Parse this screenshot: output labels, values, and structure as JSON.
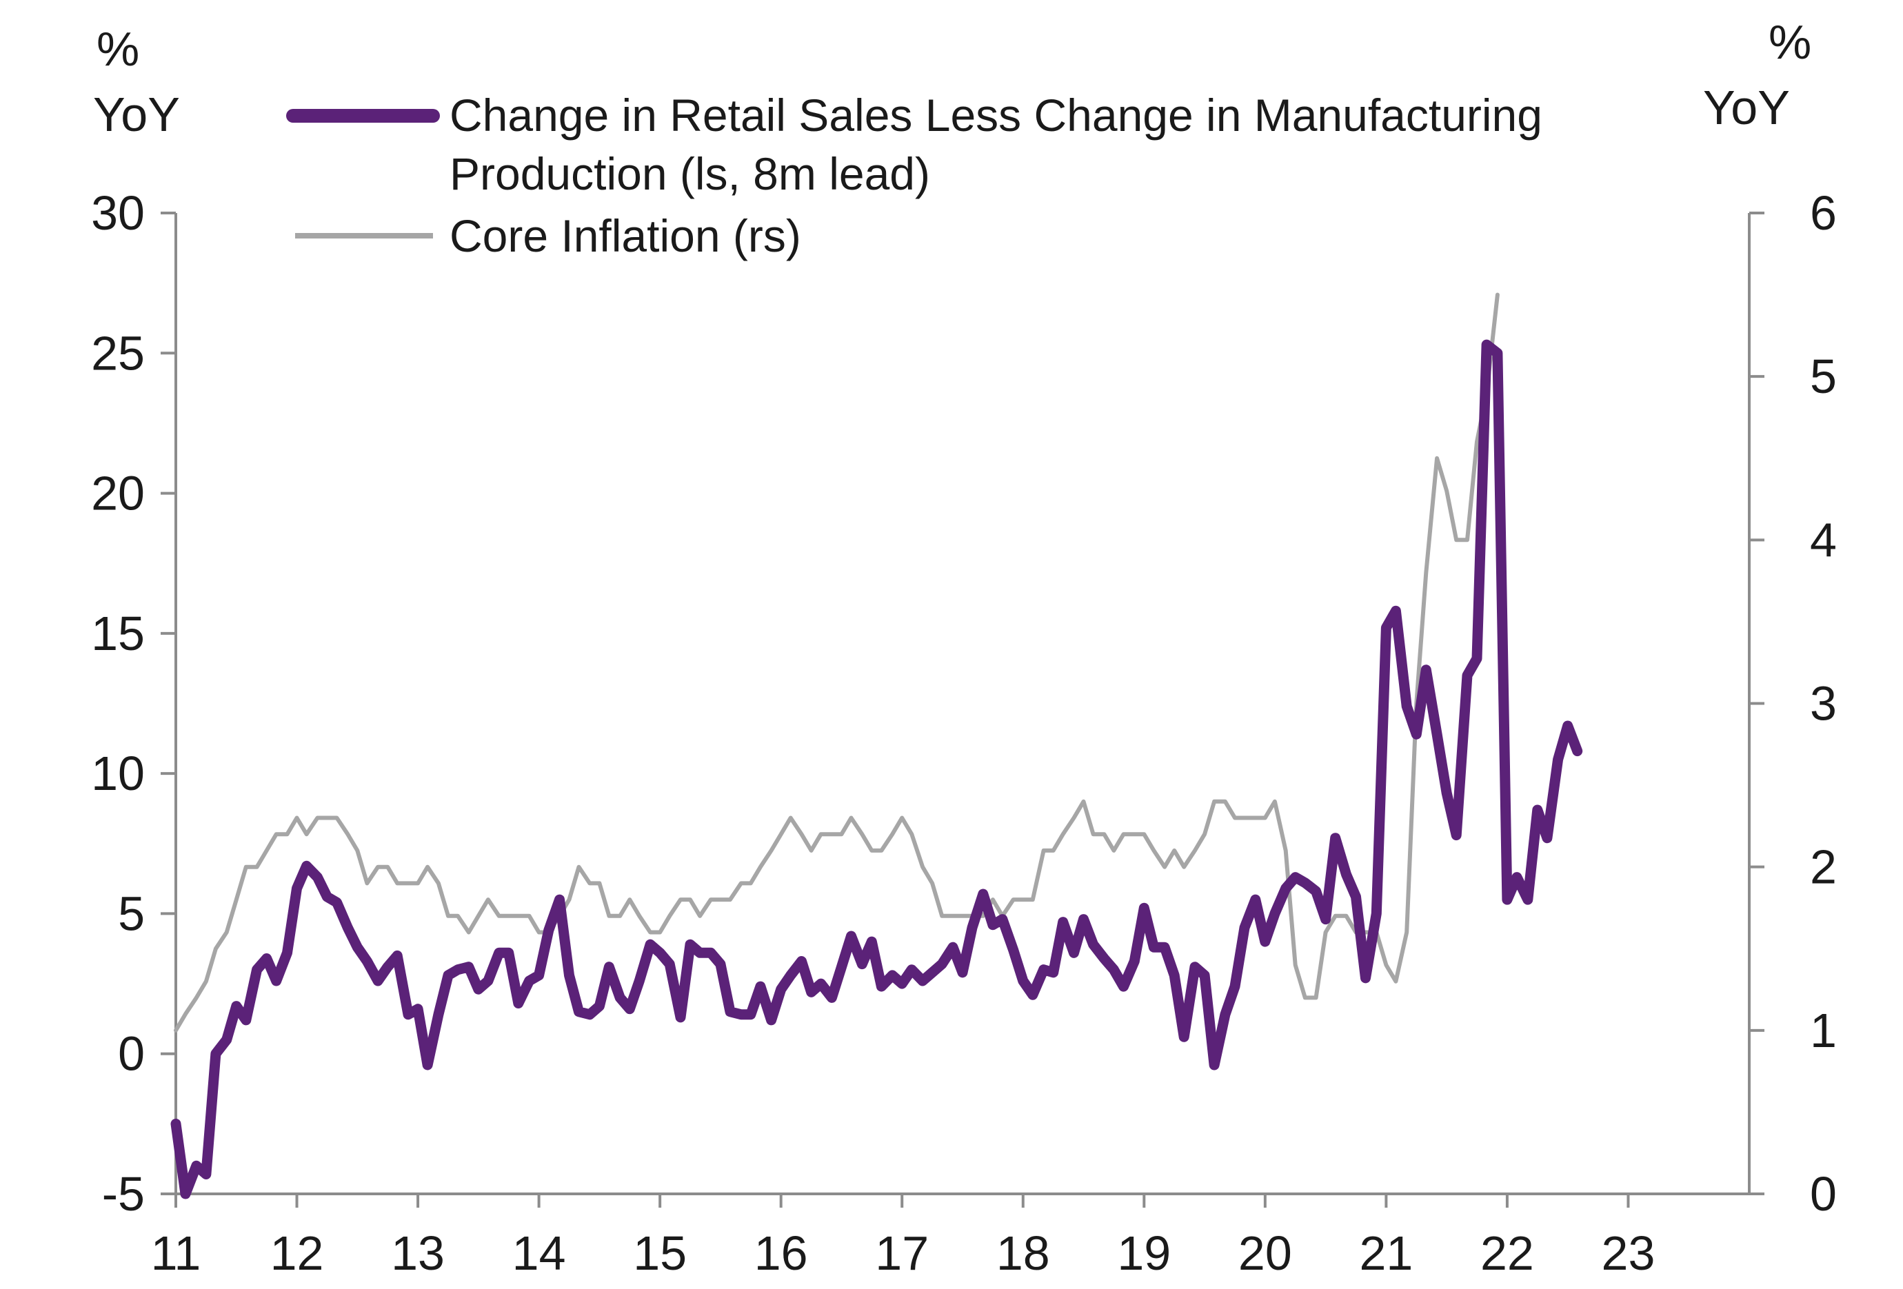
{
  "chart_data": {
    "type": "line",
    "left_unit": [
      "%",
      "YoY"
    ],
    "right_unit": [
      "%",
      "YoY"
    ],
    "x_ticks": [
      "11",
      "12",
      "13",
      "14",
      "15",
      "16",
      "17",
      "18",
      "19",
      "20",
      "21",
      "22",
      "23"
    ],
    "xlim": [
      2011,
      2024.0
    ],
    "y_left": {
      "ylim": [
        -5,
        30
      ],
      "ticks": [
        "-5",
        "0",
        "5",
        "10",
        "15",
        "20",
        "25",
        "30"
      ]
    },
    "y_right": {
      "ylim": [
        0,
        6
      ],
      "ticks": [
        "0",
        "1",
        "2",
        "3",
        "4",
        "5",
        "6"
      ]
    },
    "legend_position": "top",
    "grid": false,
    "series": [
      {
        "name": "Change in Retail Sales Less Change in Manufacturing Production (ls, 8m lead)",
        "legend_lines": [
          "Change in Retail Sales Less Change in Manufacturing",
          "Production (ls, 8m lead)"
        ],
        "axis": "left",
        "color": "#5b2278",
        "x": [
          2011.0,
          2011.08,
          2011.17,
          2011.25,
          2011.33,
          2011.42,
          2011.5,
          2011.58,
          2011.67,
          2011.75,
          2011.83,
          2011.92,
          2012.0,
          2012.08,
          2012.17,
          2012.25,
          2012.33,
          2012.42,
          2012.5,
          2012.58,
          2012.67,
          2012.75,
          2012.83,
          2012.92,
          2013.0,
          2013.08,
          2013.17,
          2013.25,
          2013.33,
          2013.42,
          2013.5,
          2013.58,
          2013.67,
          2013.75,
          2013.83,
          2013.92,
          2014.0,
          2014.08,
          2014.17,
          2014.25,
          2014.33,
          2014.42,
          2014.5,
          2014.58,
          2014.67,
          2014.75,
          2014.83,
          2014.92,
          2015.0,
          2015.08,
          2015.17,
          2015.25,
          2015.33,
          2015.42,
          2015.5,
          2015.58,
          2015.67,
          2015.75,
          2015.83,
          2015.92,
          2016.0,
          2016.08,
          2016.17,
          2016.25,
          2016.33,
          2016.42,
          2016.5,
          2016.58,
          2016.67,
          2016.75,
          2016.83,
          2016.92,
          2017.0,
          2017.08,
          2017.17,
          2017.25,
          2017.33,
          2017.42,
          2017.5,
          2017.58,
          2017.67,
          2017.75,
          2017.83,
          2017.92,
          2018.0,
          2018.08,
          2018.17,
          2018.25,
          2018.33,
          2018.42,
          2018.5,
          2018.58,
          2018.67,
          2018.75,
          2018.83,
          2018.92,
          2019.0,
          2019.08,
          2019.17,
          2019.25,
          2019.33,
          2019.42,
          2019.5,
          2019.58,
          2019.67,
          2019.75,
          2019.83,
          2019.92,
          2020.0,
          2020.08,
          2020.17,
          2020.25,
          2020.33,
          2020.42,
          2020.5,
          2020.58,
          2020.67,
          2020.75,
          2020.83,
          2020.92,
          2021.0,
          2021.08,
          2021.17,
          2021.25,
          2021.33,
          2021.42,
          2021.5,
          2021.58,
          2021.67,
          2021.75,
          2021.83,
          2021.92,
          2022.0,
          2022.08,
          2022.17,
          2022.25,
          2022.33,
          2022.42,
          2022.5,
          2022.58
        ],
        "values": [
          -2.5,
          -5.0,
          -4.0,
          -4.3,
          0.0,
          0.5,
          1.7,
          1.2,
          3.0,
          3.4,
          2.6,
          3.6,
          5.9,
          6.7,
          6.3,
          5.6,
          5.4,
          4.5,
          3.8,
          3.3,
          2.6,
          3.1,
          3.5,
          1.4,
          1.6,
          -0.4,
          1.4,
          2.8,
          3.0,
          3.1,
          2.3,
          2.6,
          3.6,
          3.6,
          1.8,
          2.6,
          2.8,
          4.4,
          5.5,
          2.8,
          1.5,
          1.4,
          1.7,
          3.1,
          2.0,
          1.6,
          2.6,
          3.9,
          3.6,
          3.2,
          1.3,
          3.9,
          3.6,
          3.6,
          3.2,
          1.5,
          1.4,
          1.4,
          2.4,
          1.2,
          2.3,
          2.8,
          3.3,
          2.2,
          2.5,
          2.0,
          3.1,
          4.2,
          3.2,
          4.0,
          2.4,
          2.8,
          2.5,
          3.0,
          2.6,
          2.9,
          3.2,
          3.8,
          2.9,
          4.5,
          5.7,
          4.6,
          4.8,
          3.7,
          2.6,
          2.1,
          3.0,
          2.9,
          4.7,
          3.6,
          4.8,
          3.9,
          3.4,
          3.0,
          2.4,
          3.3,
          5.2,
          3.8,
          3.8,
          2.8,
          0.6,
          3.1,
          2.8,
          -0.4,
          1.4,
          2.4,
          4.5,
          5.5,
          4.0,
          5.0,
          5.9,
          6.3,
          6.1,
          5.8,
          4.8,
          7.7,
          6.4,
          5.6,
          2.7,
          5.0,
          15.2,
          15.8,
          12.4,
          11.4,
          13.7,
          11.4,
          9.3,
          7.8,
          13.5,
          14.1,
          25.3,
          25.0,
          5.5,
          6.3,
          5.5,
          8.7,
          7.7,
          10.5,
          11.7,
          10.8
        ]
      },
      {
        "name": "Core Inflation (rs)",
        "legend_lines": [
          "Core Inflation (rs)"
        ],
        "axis": "right",
        "color": "#a6a6a6",
        "x": [
          2011.0,
          2011.08,
          2011.17,
          2011.25,
          2011.33,
          2011.42,
          2011.5,
          2011.58,
          2011.67,
          2011.75,
          2011.83,
          2011.92,
          2012.0,
          2012.08,
          2012.17,
          2012.25,
          2012.33,
          2012.42,
          2012.5,
          2012.58,
          2012.67,
          2012.75,
          2012.83,
          2012.92,
          2013.0,
          2013.08,
          2013.17,
          2013.25,
          2013.33,
          2013.42,
          2013.5,
          2013.58,
          2013.67,
          2013.75,
          2013.83,
          2013.92,
          2014.0,
          2014.08,
          2014.17,
          2014.25,
          2014.33,
          2014.42,
          2014.5,
          2014.58,
          2014.67,
          2014.75,
          2014.83,
          2014.92,
          2015.0,
          2015.08,
          2015.17,
          2015.25,
          2015.33,
          2015.42,
          2015.5,
          2015.58,
          2015.67,
          2015.75,
          2015.83,
          2015.92,
          2016.0,
          2016.08,
          2016.17,
          2016.25,
          2016.33,
          2016.42,
          2016.5,
          2016.58,
          2016.67,
          2016.75,
          2016.83,
          2016.92,
          2017.0,
          2017.08,
          2017.17,
          2017.25,
          2017.33,
          2017.42,
          2017.5,
          2017.58,
          2017.67,
          2017.75,
          2017.83,
          2017.92,
          2018.0,
          2018.08,
          2018.17,
          2018.25,
          2018.33,
          2018.42,
          2018.5,
          2018.58,
          2018.67,
          2018.75,
          2018.83,
          2018.92,
          2019.0,
          2019.08,
          2019.17,
          2019.25,
          2019.33,
          2019.42,
          2019.5,
          2019.58,
          2019.67,
          2019.75,
          2019.83,
          2019.92,
          2020.0,
          2020.08,
          2020.17,
          2020.25,
          2020.33,
          2020.42,
          2020.5,
          2020.58,
          2020.67,
          2020.75,
          2020.83,
          2020.92,
          2021.0,
          2021.08,
          2021.17,
          2021.25,
          2021.33,
          2021.42,
          2021.5,
          2021.58,
          2021.67,
          2021.75,
          2021.83,
          2021.92
        ],
        "values": [
          1.0,
          1.1,
          1.2,
          1.3,
          1.5,
          1.6,
          1.8,
          2.0,
          2.0,
          2.1,
          2.2,
          2.2,
          2.3,
          2.2,
          2.3,
          2.3,
          2.3,
          2.2,
          2.1,
          1.9,
          2.0,
          2.0,
          1.9,
          1.9,
          1.9,
          2.0,
          1.9,
          1.7,
          1.7,
          1.6,
          1.7,
          1.8,
          1.7,
          1.7,
          1.7,
          1.7,
          1.6,
          1.6,
          1.7,
          1.8,
          2.0,
          1.9,
          1.9,
          1.7,
          1.7,
          1.8,
          1.7,
          1.6,
          1.6,
          1.7,
          1.8,
          1.8,
          1.7,
          1.8,
          1.8,
          1.8,
          1.9,
          1.9,
          2.0,
          2.1,
          2.2,
          2.3,
          2.2,
          2.1,
          2.2,
          2.2,
          2.2,
          2.3,
          2.2,
          2.1,
          2.1,
          2.2,
          2.3,
          2.2,
          2.0,
          1.9,
          1.7,
          1.7,
          1.7,
          1.7,
          1.7,
          1.8,
          1.7,
          1.8,
          1.8,
          1.8,
          2.1,
          2.1,
          2.2,
          2.3,
          2.4,
          2.2,
          2.2,
          2.1,
          2.2,
          2.2,
          2.2,
          2.1,
          2.0,
          2.1,
          2.0,
          2.1,
          2.2,
          2.4,
          2.4,
          2.3,
          2.3,
          2.3,
          2.3,
          2.4,
          2.1,
          1.4,
          1.2,
          1.2,
          1.6,
          1.7,
          1.7,
          1.6,
          1.6,
          1.6,
          1.4,
          1.3,
          1.6,
          3.0,
          3.8,
          4.5,
          4.3,
          4.0,
          4.0,
          4.6,
          4.9,
          5.5
        ]
      }
    ]
  }
}
